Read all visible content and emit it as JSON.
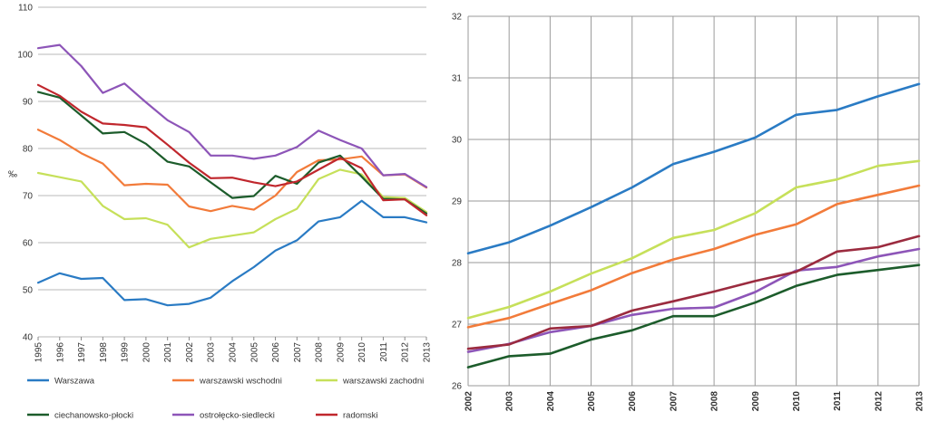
{
  "chart_data": [
    {
      "type": "line",
      "title": "",
      "xlabel": "",
      "ylabel": "‰",
      "x": [
        "1995",
        "1996",
        "1997",
        "1998",
        "1999",
        "2000",
        "2001",
        "2002",
        "2003",
        "2004",
        "2005",
        "2006",
        "2007",
        "2008",
        "2009",
        "2010",
        "2011",
        "2012",
        "2013"
      ],
      "ylim": [
        40,
        110
      ],
      "yticks": [
        40,
        50,
        60,
        70,
        80,
        90,
        100,
        110
      ],
      "grid": "horizontal",
      "legend_position": "bottom",
      "series": [
        {
          "name": "Warszawa",
          "color": "#2a7bc4",
          "values": [
            51.5,
            53.5,
            52.3,
            52.5,
            47.8,
            48.0,
            46.7,
            47.0,
            48.3,
            51.8,
            54.8,
            58.3,
            60.5,
            64.5,
            65.4,
            68.9,
            65.4,
            65.4,
            64.3
          ]
        },
        {
          "name": "warszawski wschodni",
          "color": "#f27b3a",
          "values": [
            84.0,
            81.8,
            79.0,
            76.8,
            72.2,
            72.5,
            72.3,
            67.7,
            66.7,
            67.8,
            67.0,
            70.0,
            75.0,
            77.5,
            77.7,
            78.3,
            74.3,
            74.5,
            71.7
          ]
        },
        {
          "name": "warszawski zachodni",
          "color": "#c6e05a",
          "values": [
            74.8,
            73.9,
            73.0,
            67.8,
            65.0,
            65.2,
            63.8,
            59.0,
            60.8,
            61.5,
            62.2,
            65.0,
            67.2,
            73.5,
            75.5,
            74.5,
            69.7,
            69.5,
            66.5
          ]
        },
        {
          "name": "ciechanowsko-płocki",
          "color": "#1c5c2b",
          "values": [
            92.0,
            90.8,
            87.0,
            83.2,
            83.5,
            81.0,
            77.2,
            76.2,
            72.8,
            69.5,
            69.9,
            74.2,
            72.5,
            77.0,
            78.5,
            74.0,
            69.3,
            69.2,
            66.2
          ]
        },
        {
          "name": "ostrołęcko-siedlecki",
          "color": "#8d55b8",
          "values": [
            101.3,
            102.0,
            97.5,
            91.8,
            93.8,
            89.8,
            86.0,
            83.5,
            78.5,
            78.5,
            77.8,
            78.5,
            80.3,
            83.8,
            81.8,
            80.0,
            74.3,
            74.6,
            71.8
          ]
        },
        {
          "name": "radomski",
          "color": "#c0272d",
          "values": [
            93.5,
            91.2,
            87.8,
            85.3,
            85.0,
            84.5,
            80.8,
            77.0,
            73.7,
            73.8,
            72.8,
            72.0,
            73.0,
            75.5,
            78.0,
            75.8,
            69.0,
            69.2,
            65.8
          ]
        }
      ]
    },
    {
      "type": "line",
      "title": "",
      "xlabel": "",
      "ylabel": "",
      "x": [
        "2002",
        "2003",
        "2004",
        "2005",
        "2006",
        "2007",
        "2008",
        "2009",
        "2010",
        "2011",
        "2012",
        "2013"
      ],
      "ylim": [
        26,
        32
      ],
      "yticks": [
        26,
        27,
        28,
        29,
        30,
        31,
        32
      ],
      "grid": "both",
      "series": [
        {
          "name": "Warszawa",
          "color": "#2a7bc4",
          "values": [
            28.15,
            28.33,
            28.6,
            28.9,
            29.22,
            29.6,
            29.8,
            30.03,
            30.4,
            30.48,
            30.7,
            30.9
          ]
        },
        {
          "name": "warszawski wschodni",
          "color": "#f27b3a",
          "values": [
            26.95,
            27.1,
            27.33,
            27.55,
            27.83,
            28.05,
            28.22,
            28.45,
            28.62,
            28.95,
            29.1,
            29.25
          ]
        },
        {
          "name": "warszawski zachodni",
          "color": "#c6e05a",
          "values": [
            27.1,
            27.28,
            27.53,
            27.82,
            28.07,
            28.4,
            28.53,
            28.8,
            29.22,
            29.35,
            29.57,
            29.65
          ]
        },
        {
          "name": "ciechanowsko-płocki",
          "color": "#1c5c2b",
          "values": [
            26.3,
            26.48,
            26.52,
            26.75,
            26.9,
            27.13,
            27.13,
            27.35,
            27.62,
            27.8,
            27.88,
            27.96
          ]
        },
        {
          "name": "ostrołęcko-siedlecki",
          "color": "#8d55b8",
          "values": [
            26.55,
            26.68,
            26.87,
            26.97,
            27.15,
            27.25,
            27.27,
            27.52,
            27.87,
            27.93,
            28.1,
            28.22
          ]
        },
        {
          "name": "radomski",
          "color": "#9b2b3f",
          "values": [
            26.6,
            26.67,
            26.93,
            26.97,
            27.22,
            27.37,
            27.53,
            27.7,
            27.85,
            28.18,
            28.25,
            28.43
          ]
        }
      ]
    }
  ]
}
